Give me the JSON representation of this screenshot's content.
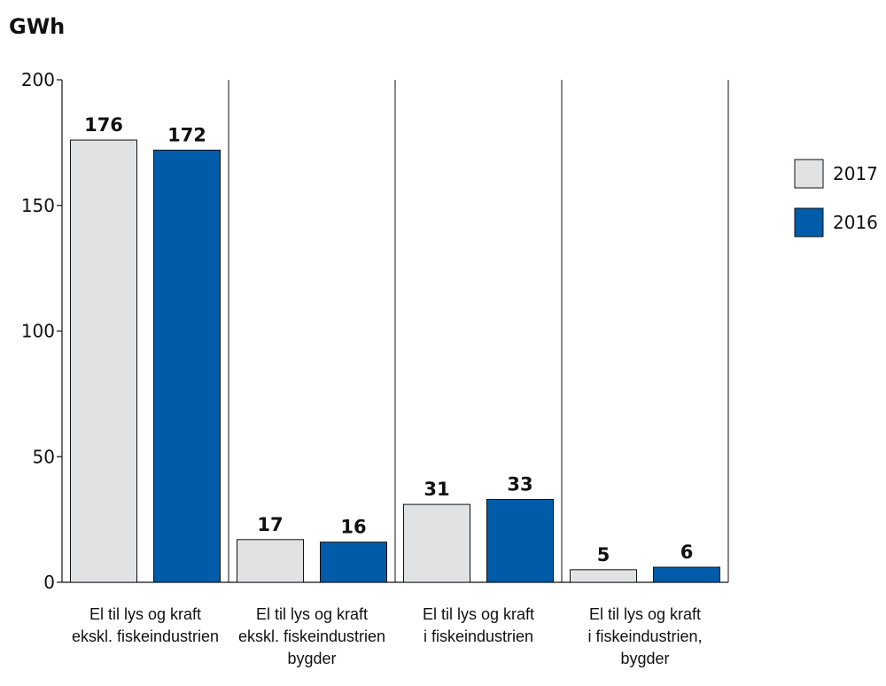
{
  "chart_data": {
    "type": "bar",
    "ylabel": "GWh",
    "ylim": [
      0,
      200
    ],
    "yticks": [
      0,
      50,
      100,
      150,
      200
    ],
    "categories": [
      [
        "El til lys og kraft",
        "ekskl. fiskeindustrien"
      ],
      [
        "El til lys og kraft",
        "ekskl. fiskeindustrien",
        "bygder"
      ],
      [
        "El til lys og kraft",
        "i fiskeindustrien"
      ],
      [
        "El til lys og kraft",
        "i fiskeindustrien,",
        "bygder"
      ]
    ],
    "series": [
      {
        "name": "2017",
        "color": "#e1e2e3",
        "values": [
          176,
          17,
          31,
          5
        ]
      },
      {
        "name": "2016",
        "color": "#005ba8",
        "values": [
          172,
          16,
          33,
          6
        ]
      }
    ],
    "legend_position": "right",
    "grid": false,
    "category_separators": true
  }
}
